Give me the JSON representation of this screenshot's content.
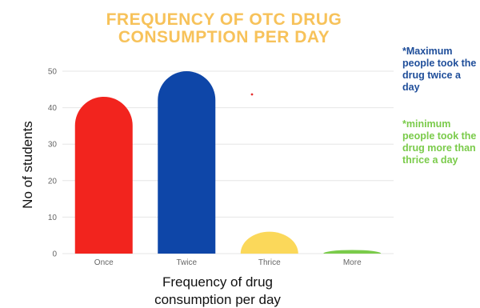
{
  "chart_data": {
    "type": "bar",
    "title": "FREQUENCY OF OTC DRUG CONSUMPTION PER DAY",
    "xlabel": "Frequency of drug consumption per day",
    "ylabel": "No of students",
    "categories": [
      "Once",
      "Twice",
      "Thrice",
      "More"
    ],
    "values": [
      43,
      50,
      6,
      1
    ],
    "colors": [
      "#F2241E",
      "#0E46A8",
      "#FBD85A",
      "#7ACB4A"
    ],
    "ylim": [
      0,
      50
    ],
    "yticks": [
      0,
      10,
      20,
      30,
      40,
      50
    ],
    "grid": true,
    "legend": "none",
    "bar_shape": "rounded-top"
  },
  "annotations": {
    "max_note": "*Maximum people took the drug twice a day",
    "min_note": "*minimum people took the drug more than thrice a day"
  }
}
